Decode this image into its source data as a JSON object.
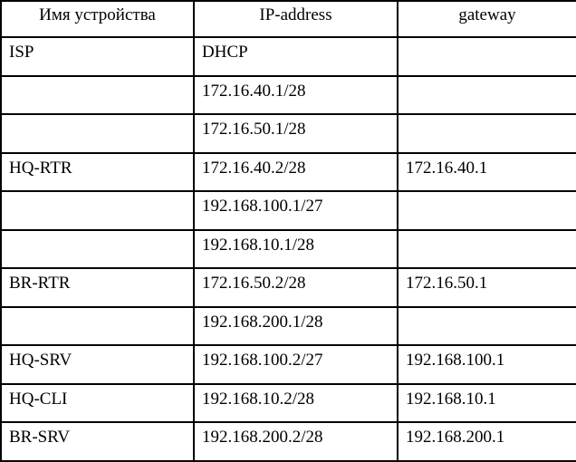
{
  "table": {
    "columns": [
      {
        "label": "Имя устройства"
      },
      {
        "label": "IP-address"
      },
      {
        "label": "gateway"
      }
    ],
    "rows": [
      [
        "ISP",
        "DHCP",
        ""
      ],
      [
        "",
        "172.16.40.1/28",
        ""
      ],
      [
        "",
        "172.16.50.1/28",
        ""
      ],
      [
        "HQ-RTR",
        "172.16.40.2/28",
        "172.16.40.1"
      ],
      [
        "",
        "192.168.100.1/27",
        ""
      ],
      [
        "",
        "192.168.10.1/28",
        ""
      ],
      [
        "BR-RTR",
        "172.16.50.2/28",
        "172.16.50.1"
      ],
      [
        "",
        "192.168.200.1/28",
        ""
      ],
      [
        "HQ-SRV",
        "192.168.100.2/27",
        "192.168.100.1"
      ],
      [
        "HQ-CLI",
        "192.168.10.2/28",
        "192.168.10.1"
      ],
      [
        "BR-SRV",
        "192.168.200.2/28",
        "192.168.200.1"
      ]
    ],
    "colors": {
      "border": "#000000",
      "text": "#000000",
      "background": "#ffffff"
    }
  }
}
